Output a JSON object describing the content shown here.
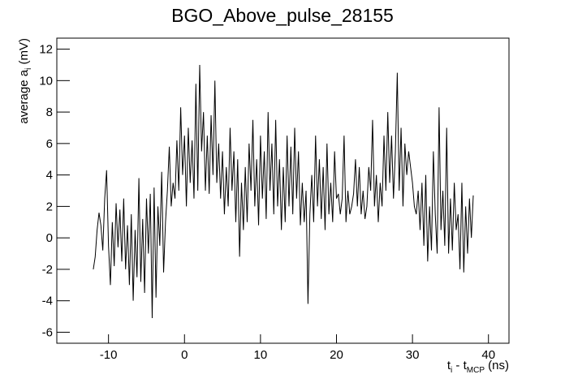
{
  "chart_data": {
    "type": "line",
    "title": "BGO_Above_pulse_28155",
    "x_label": [
      "t",
      "i",
      " - t",
      "MCP",
      " (ns)"
    ],
    "y_label": [
      "average a",
      "i",
      " (mV)"
    ],
    "xlim": [
      -16.8,
      42.7
    ],
    "ylim": [
      -6.7,
      12.7
    ],
    "xticks": [
      -10,
      0,
      10,
      20,
      30,
      40
    ],
    "yticks": [
      -6,
      -4,
      -2,
      0,
      2,
      4,
      6,
      8,
      10,
      12
    ],
    "color": "#000000",
    "x": [
      -12,
      -11.75,
      -11.5,
      -11.25,
      -11,
      -10.75,
      -10.5,
      -10.25,
      -10,
      -9.75,
      -9.5,
      -9.25,
      -9,
      -8.75,
      -8.5,
      -8.25,
      -8,
      -7.75,
      -7.5,
      -7.25,
      -7,
      -6.75,
      -6.5,
      -6.25,
      -6,
      -5.75,
      -5.5,
      -5.25,
      -5,
      -4.75,
      -4.5,
      -4.25,
      -4,
      -3.75,
      -3.5,
      -3.25,
      -3,
      -2.75,
      -2.5,
      -2.25,
      -2,
      -1.75,
      -1.5,
      -1.25,
      -1,
      -0.75,
      -0.5,
      -0.25,
      0,
      0.25,
      0.5,
      0.75,
      1,
      1.25,
      1.5,
      1.75,
      2,
      2.25,
      2.5,
      2.75,
      3,
      3.25,
      3.5,
      3.75,
      4,
      4.25,
      4.5,
      4.75,
      5,
      5.25,
      5.5,
      5.75,
      6,
      6.25,
      6.5,
      6.75,
      7,
      7.25,
      7.5,
      7.75,
      8,
      8.25,
      8.5,
      8.75,
      9,
      9.25,
      9.5,
      9.75,
      10,
      10.25,
      10.5,
      10.75,
      11,
      11.25,
      11.5,
      11.75,
      12,
      12.25,
      12.5,
      12.75,
      13,
      13.25,
      13.5,
      13.75,
      14,
      14.25,
      14.5,
      14.75,
      15,
      15.25,
      15.5,
      15.75,
      16,
      16.25,
      16.5,
      16.75,
      17,
      17.25,
      17.5,
      17.75,
      18,
      18.25,
      18.5,
      18.75,
      19,
      19.25,
      19.5,
      19.75,
      20,
      20.25,
      20.5,
      20.75,
      21,
      21.25,
      21.5,
      21.75,
      22,
      22.25,
      22.5,
      22.75,
      23,
      23.25,
      23.5,
      23.75,
      24,
      24.25,
      24.5,
      24.75,
      25,
      25.25,
      25.5,
      25.75,
      26,
      26.25,
      26.5,
      26.75,
      27,
      27.25,
      27.5,
      27.75,
      28,
      28.25,
      28.5,
      28.75,
      29,
      29.25,
      29.5,
      29.75,
      30,
      30.25,
      30.5,
      30.75,
      31,
      31.25,
      31.5,
      31.75,
      32,
      32.25,
      32.5,
      32.75,
      33,
      33.25,
      33.5,
      33.75,
      34,
      34.25,
      34.5,
      34.75,
      35,
      35.25,
      35.5,
      35.75,
      36,
      36.25,
      36.5,
      36.75,
      37,
      37.25,
      37.5,
      37.75,
      38
    ],
    "values": [
      -2.0,
      -1.2,
      0.5,
      1.6,
      0.8,
      -0.8,
      2.5,
      4.3,
      -0.5,
      -3.0,
      1.0,
      -1.8,
      2.2,
      -0.6,
      1.8,
      -1.5,
      2.5,
      -2.0,
      0.8,
      -3.0,
      1.5,
      -4.0,
      0.5,
      -2.5,
      3.8,
      -2.8,
      1.2,
      -3.5,
      2.5,
      -1.0,
      2.8,
      -5.1,
      3.2,
      -3.8,
      2.0,
      -0.5,
      4.2,
      -2.2,
      1.0,
      3.0,
      5.8,
      2.0,
      3.5,
      2.5,
      6.2,
      3.0,
      8.3,
      4.0,
      6.5,
      2.0,
      7.0,
      3.5,
      6.2,
      2.5,
      9.8,
      3.0,
      11.0,
      5.5,
      8.0,
      3.0,
      6.5,
      2.8,
      7.8,
      4.0,
      10.0,
      3.5,
      6.0,
      2.5,
      5.5,
      1.5,
      4.5,
      2.0,
      7.0,
      3.0,
      5.5,
      1.0,
      5.0,
      -1.2,
      3.5,
      0.5,
      4.5,
      1.0,
      6.0,
      3.0,
      7.5,
      2.0,
      5.0,
      0.8,
      6.5,
      2.5,
      5.5,
      1.2,
      8.0,
      3.0,
      6.0,
      1.5,
      7.5,
      2.0,
      5.0,
      0.5,
      4.5,
      1.0,
      6.5,
      2.0,
      5.8,
      1.5,
      7.0,
      2.5,
      5.5,
      0.8,
      3.5,
      1.0,
      3.0,
      -4.2,
      1.5,
      4.0,
      1.0,
      6.5,
      2.0,
      5.0,
      1.2,
      4.5,
      0.5,
      6.0,
      1.5,
      3.5,
      1.0,
      5.5,
      2.5,
      2.8,
      1.5,
      2.5,
      6.5,
      1.0,
      3.0,
      1.5,
      2.0,
      2.8,
      5.0,
      2.0,
      4.5,
      1.5,
      3.0,
      1.2,
      2.0,
      4.5,
      3.0,
      7.5,
      2.0,
      4.0,
      1.0,
      3.5,
      2.0,
      6.5,
      3.0,
      8.0,
      3.5,
      6.5,
      2.5,
      5.5,
      10.5,
      3.0,
      7.0,
      2.0,
      6.0,
      4.0,
      5.5,
      4.5,
      3.5,
      2.0,
      1.5,
      3.0,
      0.5,
      3.5,
      -0.5,
      4.0,
      -1.5,
      2.0,
      -0.8,
      5.5,
      1.5,
      -1.0,
      8.3,
      0.5,
      3.0,
      -0.5,
      7.0,
      -1.0,
      2.5,
      -0.8,
      3.5,
      0.5,
      1.5,
      -2.0,
      3.5,
      -2.2,
      2.0,
      -1.0,
      2.5,
      0.0,
      2.7
    ]
  }
}
